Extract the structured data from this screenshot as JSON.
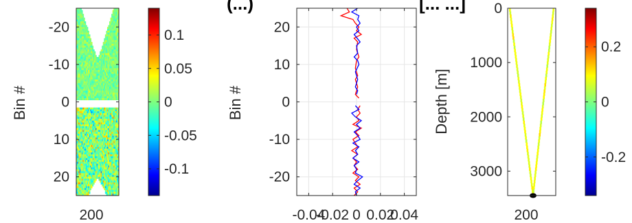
{
  "title_fragment_left": "(...)",
  "title_fragment_right": "[...  ...]",
  "chart_data": [
    {
      "type": "heatmap",
      "ylabel": "Bin #",
      "xticks": [
        "200"
      ],
      "yticks": [
        "-20",
        "-10",
        "0",
        "10",
        "20"
      ],
      "ylim": [
        -25,
        25
      ],
      "y_reversed": true,
      "colorbar": {
        "ticks": [
          "0.1",
          "0.05",
          "0",
          "-0.05",
          "-0.1"
        ],
        "values": [
          0.1,
          0.05,
          0,
          -0.05,
          -0.1
        ],
        "range": [
          -0.14,
          0.14
        ]
      }
    },
    {
      "type": "line",
      "ylabel": "Bin #",
      "xlim": [
        -0.05,
        0.05
      ],
      "xticks": [
        "-0.04",
        "-0.02",
        "0",
        "0.02",
        "0.04"
      ],
      "xtick_values": [
        -0.04,
        -0.02,
        0,
        0.02,
        0.04
      ],
      "ylim": [
        -25,
        25
      ],
      "yticks": [
        "20",
        "10",
        "0",
        "-10",
        "-20"
      ],
      "ytick_values": [
        20,
        10,
        0,
        -10,
        -20
      ],
      "grid": true,
      "series": [
        {
          "color": "#ff0000",
          "points": [
            [
              -0.008,
              25
            ],
            [
              -0.006,
              24
            ],
            [
              -0.013,
              23
            ],
            [
              -0.003,
              22
            ],
            [
              -0.001,
              21
            ],
            [
              0.002,
              20
            ],
            [
              0,
              19
            ],
            [
              0.004,
              18
            ],
            [
              -0.002,
              17
            ],
            [
              0.001,
              16
            ],
            [
              0,
              14
            ],
            [
              0.002,
              12
            ],
            [
              0,
              11
            ],
            [
              -0.001,
              9
            ],
            [
              0.001,
              7
            ],
            [
              -0.001,
              6
            ],
            [
              0.001,
              4
            ],
            [
              0,
              3
            ],
            [
              -0.001,
              2
            ],
            [
              0.002,
              1
            ],
            [
              0.003,
              -1
            ],
            [
              0.001,
              -2
            ],
            [
              0.003,
              -3
            ],
            [
              0,
              -4
            ],
            [
              0.002,
              -5
            ],
            [
              -0.003,
              -6
            ],
            [
              0.004,
              -7
            ],
            [
              -0.001,
              -8
            ],
            [
              0.002,
              -9
            ],
            [
              -0.003,
              -10
            ],
            [
              0.001,
              -12
            ],
            [
              -0.004,
              -13
            ],
            [
              0.001,
              -14
            ],
            [
              -0.003,
              -15
            ],
            [
              0,
              -16
            ],
            [
              -0.002,
              -17
            ],
            [
              0.001,
              -18
            ],
            [
              -0.003,
              -19
            ],
            [
              0.002,
              -20
            ],
            [
              -0.001,
              -21
            ],
            [
              0.003,
              -22
            ],
            [
              -0.002,
              -23
            ],
            [
              0.001,
              -24
            ],
            [
              -0.002,
              -25
            ]
          ]
        },
        {
          "color": "#0000ff",
          "points": [
            [
              0.001,
              25
            ],
            [
              -0.004,
              24
            ],
            [
              0.002,
              23
            ],
            [
              0.001,
              22
            ],
            [
              0.003,
              21
            ],
            [
              0,
              20
            ],
            [
              0.002,
              19
            ],
            [
              -0.002,
              18
            ],
            [
              0.003,
              16
            ],
            [
              0,
              15
            ],
            [
              0.001,
              13
            ],
            [
              -0.002,
              12
            ],
            [
              0.001,
              11
            ],
            [
              0.002,
              10
            ],
            [
              -0.001,
              8
            ],
            [
              0,
              7
            ],
            [
              0.001,
              6
            ],
            [
              0,
              5
            ],
            [
              -0.001,
              4
            ],
            [
              0.001,
              3
            ],
            [
              0,
              2
            ],
            [
              -0.001,
              -1
            ],
            [
              0.002,
              -2
            ],
            [
              -0.004,
              -3
            ],
            [
              -0.001,
              -4
            ],
            [
              0.004,
              -5
            ],
            [
              0,
              -6
            ],
            [
              0.003,
              -7
            ],
            [
              -0.002,
              -8
            ],
            [
              0.001,
              -9
            ],
            [
              0.003,
              -10
            ],
            [
              -0.003,
              -11
            ],
            [
              0.002,
              -12
            ],
            [
              -0.001,
              -13
            ],
            [
              0.001,
              -14
            ],
            [
              -0.003,
              -15
            ],
            [
              0.002,
              -16
            ],
            [
              -0.002,
              -17
            ],
            [
              0,
              -18
            ],
            [
              -0.001,
              -19
            ],
            [
              0.005,
              -20
            ],
            [
              0.001,
              -21
            ],
            [
              -0.002,
              -22
            ],
            [
              0.003,
              -23
            ],
            [
              -0.001,
              -24
            ],
            [
              0,
              -25
            ]
          ]
        }
      ]
    },
    {
      "type": "heatmap",
      "ylabel": "Depth [m]",
      "xticks": [
        "200"
      ],
      "ylim": [
        0,
        3450
      ],
      "y_reversed": true,
      "yticks": [
        "0",
        "1000",
        "2000",
        "3000"
      ],
      "ytick_values": [
        0,
        1000,
        2000,
        3000
      ],
      "colorbar": {
        "ticks": [
          "0.2",
          "0",
          "-0.2"
        ],
        "values": [
          0.2,
          0,
          -0.2
        ],
        "range": [
          -0.34,
          0.34
        ]
      }
    }
  ]
}
